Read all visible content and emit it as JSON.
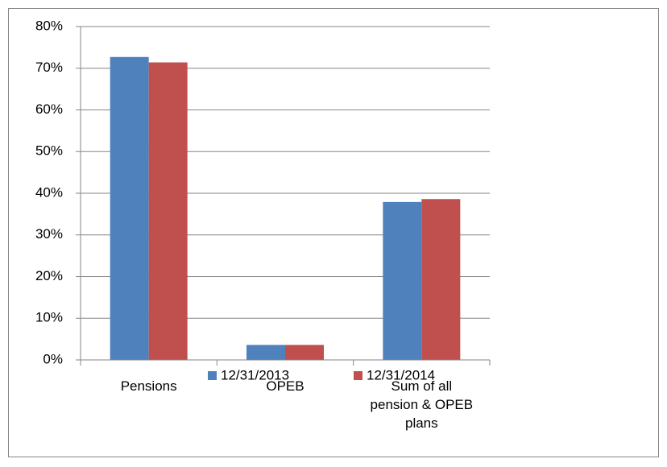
{
  "chart_data": {
    "type": "bar",
    "categories": [
      "Pensions",
      "OPEB",
      "Sum of all pension & OPEB plans"
    ],
    "series": [
      {
        "name": "12/31/2013",
        "color": "#4f81bd",
        "values": [
          72.7,
          3.6,
          37.9
        ]
      },
      {
        "name": "12/31/2014",
        "color": "#c0504d",
        "values": [
          71.4,
          3.6,
          38.6
        ]
      }
    ],
    "ylim": [
      0,
      80
    ],
    "yticks": [
      {
        "value": 0,
        "label": "0%"
      },
      {
        "value": 10,
        "label": "10%"
      },
      {
        "value": 20,
        "label": "20%"
      },
      {
        "value": 30,
        "label": "30%"
      },
      {
        "value": 40,
        "label": "40%"
      },
      {
        "value": 50,
        "label": "50%"
      },
      {
        "value": 60,
        "label": "60%"
      },
      {
        "value": 70,
        "label": "70%"
      },
      {
        "value": 80,
        "label": "80%"
      }
    ],
    "grid": true,
    "legend": "bottom"
  }
}
